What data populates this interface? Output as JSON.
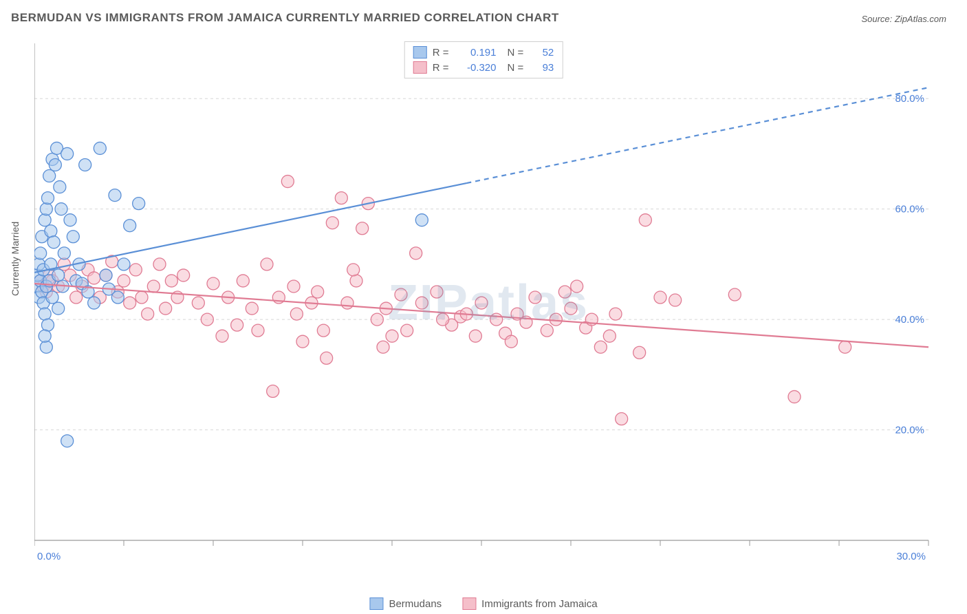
{
  "title": "BERMUDAN VS IMMIGRANTS FROM JAMAICA CURRENTLY MARRIED CORRELATION CHART",
  "source_prefix": "Source: ",
  "source_name": "ZipAtlas.com",
  "watermark": "ZIPatlas",
  "ylabel": "Currently Married",
  "chart": {
    "type": "scatter",
    "background_color": "#ffffff",
    "grid_color": "#d8d8d8",
    "axis_color": "#9a9a9a",
    "xlim": [
      0,
      30
    ],
    "ylim": [
      0,
      90
    ],
    "x_ticks": [
      0,
      3,
      6,
      9,
      12,
      15,
      18,
      21,
      24,
      27,
      30
    ],
    "x_tick_labels": {
      "start": "0.0%",
      "end": "30.0%"
    },
    "y_ticks": [
      20,
      40,
      60,
      80
    ],
    "y_tick_labels": [
      "20.0%",
      "40.0%",
      "60.0%",
      "80.0%"
    ],
    "marker_radius": 9,
    "marker_opacity": 0.55,
    "marker_stroke_width": 1.3,
    "trend_line_width": 2.2,
    "series": [
      {
        "name": "Bermudans",
        "fill": "#a8c8ed",
        "stroke": "#5a8fd6",
        "R": "0.191",
        "N": "52",
        "trend": {
          "x1": 0,
          "y1": 48.5,
          "x_solid_end": 14.5,
          "x2": 30,
          "y2": 82
        },
        "points": [
          [
            0.1,
            46
          ],
          [
            0.1,
            48
          ],
          [
            0.15,
            50
          ],
          [
            0.15,
            44
          ],
          [
            0.2,
            47
          ],
          [
            0.2,
            52
          ],
          [
            0.25,
            55
          ],
          [
            0.25,
            45
          ],
          [
            0.3,
            49
          ],
          [
            0.3,
            43
          ],
          [
            0.35,
            58
          ],
          [
            0.35,
            41
          ],
          [
            0.4,
            60
          ],
          [
            0.4,
            46
          ],
          [
            0.45,
            62
          ],
          [
            0.45,
            39
          ],
          [
            0.5,
            66
          ],
          [
            0.5,
            47
          ],
          [
            0.55,
            56
          ],
          [
            0.55,
            50
          ],
          [
            0.6,
            69
          ],
          [
            0.6,
            44
          ],
          [
            0.65,
            54
          ],
          [
            0.7,
            68
          ],
          [
            0.75,
            71
          ],
          [
            0.8,
            48
          ],
          [
            0.85,
            64
          ],
          [
            0.9,
            60
          ],
          [
            0.95,
            46
          ],
          [
            1.0,
            52
          ],
          [
            1.1,
            70
          ],
          [
            1.2,
            58
          ],
          [
            1.3,
            55
          ],
          [
            1.4,
            47
          ],
          [
            1.5,
            50
          ],
          [
            1.6,
            46.5
          ],
          [
            1.7,
            68
          ],
          [
            1.8,
            45
          ],
          [
            2.0,
            43
          ],
          [
            2.2,
            71
          ],
          [
            2.4,
            48
          ],
          [
            2.5,
            45.5
          ],
          [
            2.7,
            62.5
          ],
          [
            2.8,
            44
          ],
          [
            3.0,
            50
          ],
          [
            3.2,
            57
          ],
          [
            3.5,
            61
          ],
          [
            1.1,
            18
          ],
          [
            0.4,
            35
          ],
          [
            0.35,
            37
          ],
          [
            0.8,
            42
          ],
          [
            13.0,
            58
          ]
        ]
      },
      {
        "name": "Immigrants from Jamaica",
        "fill": "#f5bfca",
        "stroke": "#e07b93",
        "R": "-0.320",
        "N": "93",
        "trend": {
          "x1": 0,
          "y1": 46.5,
          "x_solid_end": 30,
          "x2": 30,
          "y2": 35
        },
        "points": [
          [
            0.2,
            47
          ],
          [
            0.3,
            46
          ],
          [
            0.4,
            45
          ],
          [
            0.5,
            48
          ],
          [
            0.6,
            47
          ],
          [
            0.8,
            46
          ],
          [
            1.0,
            50
          ],
          [
            1.2,
            48
          ],
          [
            1.4,
            44
          ],
          [
            1.6,
            46
          ],
          [
            1.8,
            49
          ],
          [
            2.0,
            47.5
          ],
          [
            2.2,
            44
          ],
          [
            2.4,
            48
          ],
          [
            2.6,
            50.5
          ],
          [
            2.8,
            45
          ],
          [
            3.0,
            47
          ],
          [
            3.2,
            43
          ],
          [
            3.4,
            49
          ],
          [
            3.6,
            44
          ],
          [
            3.8,
            41
          ],
          [
            4.0,
            46
          ],
          [
            4.2,
            50
          ],
          [
            4.4,
            42
          ],
          [
            4.6,
            47
          ],
          [
            4.8,
            44
          ],
          [
            5.0,
            48
          ],
          [
            5.5,
            43
          ],
          [
            5.8,
            40
          ],
          [
            6.0,
            46.5
          ],
          [
            6.3,
            37
          ],
          [
            6.5,
            44
          ],
          [
            6.8,
            39
          ],
          [
            7.0,
            47
          ],
          [
            7.3,
            42
          ],
          [
            7.5,
            38
          ],
          [
            7.8,
            50
          ],
          [
            8.0,
            27
          ],
          [
            8.2,
            44
          ],
          [
            8.5,
            65
          ],
          [
            8.8,
            41
          ],
          [
            9.0,
            36
          ],
          [
            9.5,
            45
          ],
          [
            9.8,
            33
          ],
          [
            10.0,
            57.5
          ],
          [
            10.3,
            62
          ],
          [
            10.5,
            43
          ],
          [
            10.8,
            47
          ],
          [
            11.0,
            56.5
          ],
          [
            11.2,
            61
          ],
          [
            11.5,
            40
          ],
          [
            11.8,
            42
          ],
          [
            12.0,
            37
          ],
          [
            12.3,
            44.5
          ],
          [
            12.8,
            52
          ],
          [
            13.0,
            43
          ],
          [
            13.5,
            45
          ],
          [
            14.0,
            39
          ],
          [
            14.3,
            40.5
          ],
          [
            14.8,
            37
          ],
          [
            15.0,
            43
          ],
          [
            15.5,
            40
          ],
          [
            15.8,
            37.5
          ],
          [
            16.2,
            41
          ],
          [
            16.5,
            39.5
          ],
          [
            16.8,
            44
          ],
          [
            17.2,
            38
          ],
          [
            17.5,
            40
          ],
          [
            18.0,
            42
          ],
          [
            18.2,
            46
          ],
          [
            18.5,
            38.5
          ],
          [
            18.7,
            40
          ],
          [
            19.0,
            35
          ],
          [
            19.3,
            37
          ],
          [
            19.5,
            41
          ],
          [
            19.7,
            22
          ],
          [
            20.3,
            34
          ],
          [
            20.5,
            58
          ],
          [
            21.0,
            44
          ],
          [
            21.5,
            43.5
          ],
          [
            23.5,
            44.5
          ],
          [
            25.5,
            26
          ],
          [
            27.2,
            35
          ],
          [
            17.8,
            45
          ],
          [
            16.0,
            36
          ],
          [
            14.5,
            41
          ],
          [
            13.7,
            40
          ],
          [
            12.5,
            38
          ],
          [
            11.7,
            35
          ],
          [
            10.7,
            49
          ],
          [
            9.7,
            38
          ],
          [
            9.3,
            43
          ],
          [
            8.7,
            46
          ]
        ]
      }
    ]
  },
  "legend_top": {
    "r_label": "R =",
    "n_label": "N ="
  },
  "label_color": "#5a5a5a",
  "value_color": "#4a7fd8"
}
